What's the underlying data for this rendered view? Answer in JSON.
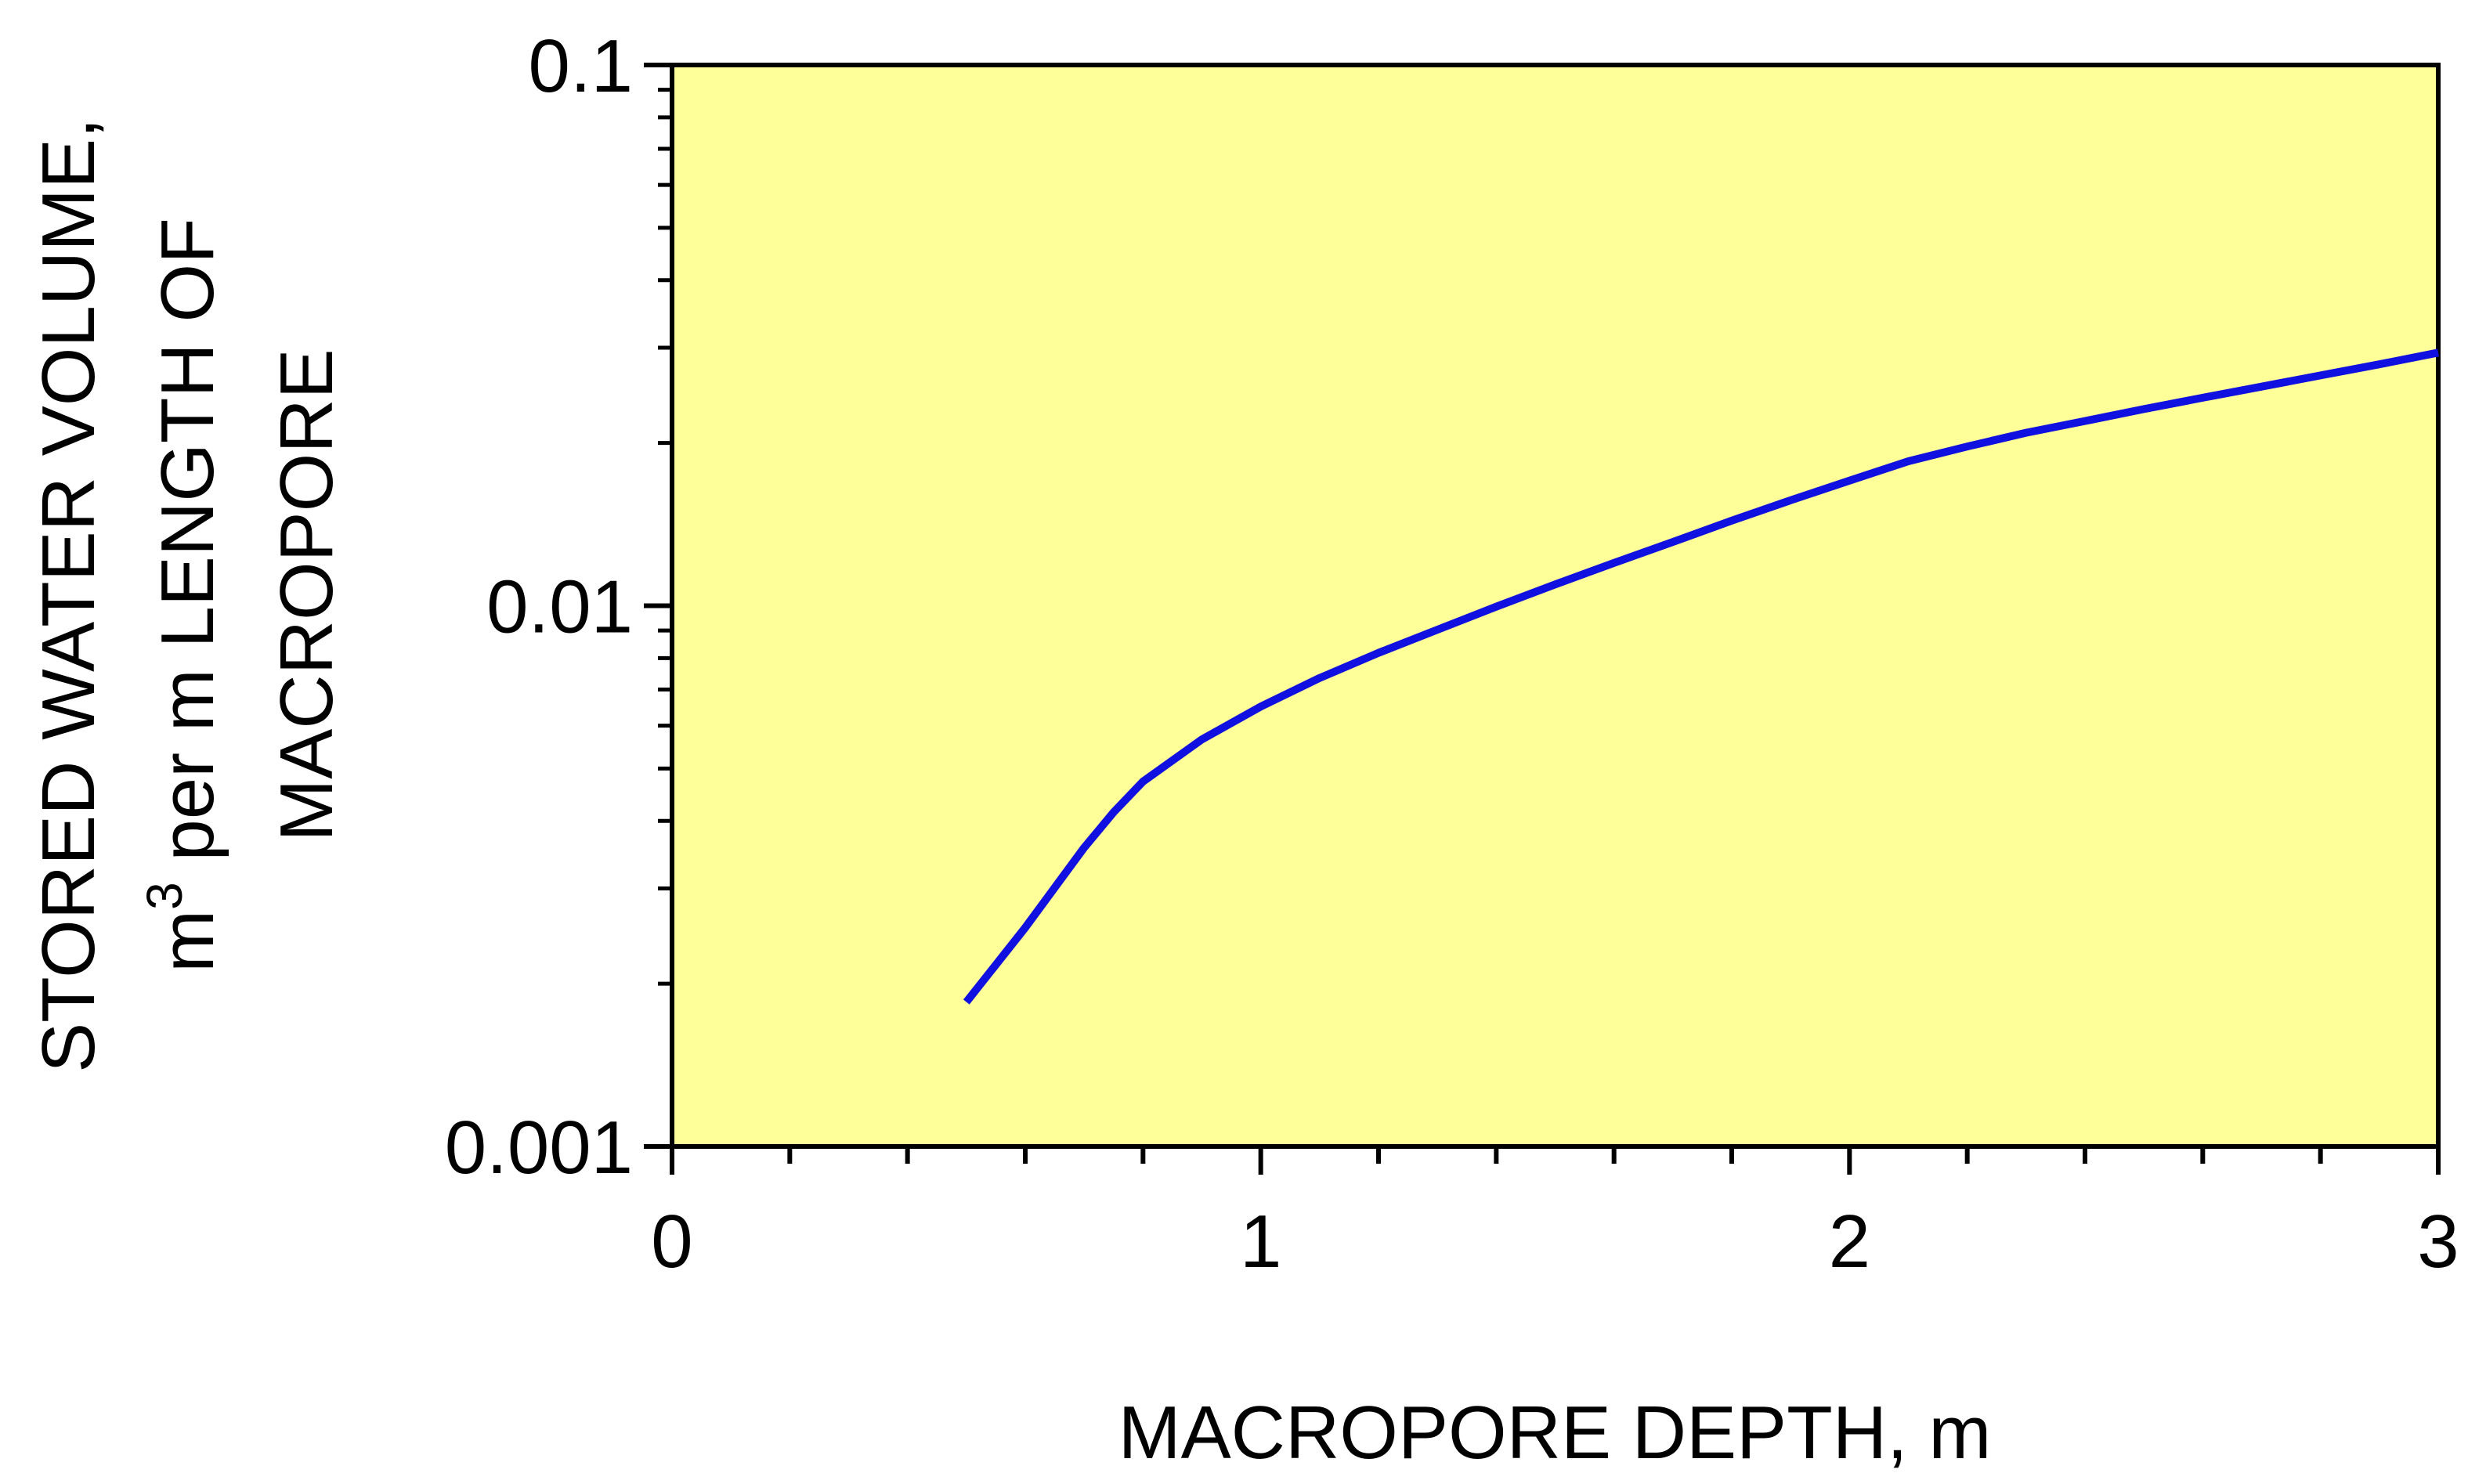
{
  "chart_data": {
    "type": "line",
    "title": "",
    "xlabel": "MACROPORE DEPTH, m",
    "ylabel": {
      "line1": "STORED WATER VOLUME,",
      "line2_prefix": "m",
      "line2_superscript": "3",
      "line2_suffix": " per m LENGTH OF",
      "line3": "MACROPORE"
    },
    "xlim": [
      0,
      3
    ],
    "ylim": [
      0.001,
      0.1
    ],
    "yscale": "log",
    "xticks": [
      0,
      1,
      2,
      3
    ],
    "xtick_labels": [
      "0",
      "1",
      "2",
      "3"
    ],
    "yticks": [
      0.001,
      0.01,
      0.1
    ],
    "ytick_labels": [
      "0.001",
      "0.01",
      "0.1"
    ],
    "grid": false,
    "background_color": "#ffff99",
    "series": [
      {
        "color": "#1010e0",
        "x": [
          0.5,
          0.6,
          0.7,
          0.75,
          0.8,
          0.9,
          1.0,
          1.1,
          1.2,
          1.3,
          1.4,
          1.5,
          1.6,
          1.7,
          1.8,
          1.9,
          2.0,
          2.1,
          2.2,
          2.3,
          2.4,
          2.5,
          2.6,
          2.7,
          2.8,
          2.9,
          3.0
        ],
        "y": [
          0.00185,
          0.00254,
          0.00357,
          0.00415,
          0.00473,
          0.00566,
          0.00651,
          0.00735,
          0.00818,
          0.00903,
          0.00996,
          0.01095,
          0.012,
          0.01312,
          0.01437,
          0.01567,
          0.01704,
          0.0185,
          0.0197,
          0.02089,
          0.02196,
          0.0231,
          0.02425,
          0.02542,
          0.02666,
          0.02796,
          0.02938
        ]
      }
    ]
  }
}
